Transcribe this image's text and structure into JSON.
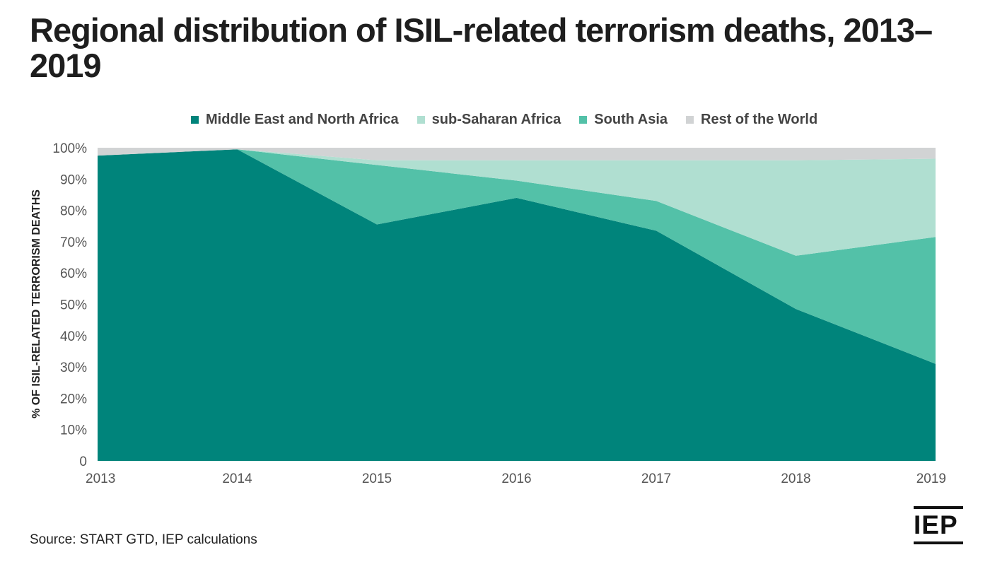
{
  "title": "Regional distribution of ISIL-related terrorism deaths, 2013–2019",
  "source": "Source: START GTD, IEP calculations",
  "logo_text": "IEP",
  "chart_data": {
    "type": "area",
    "stacked": true,
    "x": [
      "2013",
      "2014",
      "2015",
      "2016",
      "2017",
      "2018",
      "2019"
    ],
    "ylabel": "% OF ISIL-RELATED TERRORISM DEATHS",
    "xlabel": "",
    "ylim": [
      0,
      100
    ],
    "yticks": [
      "0",
      "10%",
      "20%",
      "30%",
      "40%",
      "50%",
      "60%",
      "70%",
      "80%",
      "90%",
      "100%"
    ],
    "legend_position": "top",
    "grid": false,
    "series": [
      {
        "name": "Middle East and North Africa",
        "color": "#00847b",
        "values": [
          97.5,
          99.5,
          75.5,
          84,
          73.5,
          48.5,
          31
        ]
      },
      {
        "name": "South Asia",
        "color": "#53c1a8",
        "values": [
          0,
          0,
          19,
          5.5,
          9.5,
          17,
          40.5
        ]
      },
      {
        "name": "sub-Saharan Africa",
        "color": "#b0dfd1",
        "values": [
          0,
          0,
          1.5,
          6.5,
          13,
          30.5,
          25
        ]
      },
      {
        "name": "Rest of the World",
        "color": "#d1d3d4",
        "values": [
          2.5,
          0.5,
          4,
          4,
          4,
          4,
          3.5
        ]
      }
    ],
    "legend_order": [
      "Middle East and North Africa",
      "sub-Saharan Africa",
      "South Asia",
      "Rest of the World"
    ]
  }
}
